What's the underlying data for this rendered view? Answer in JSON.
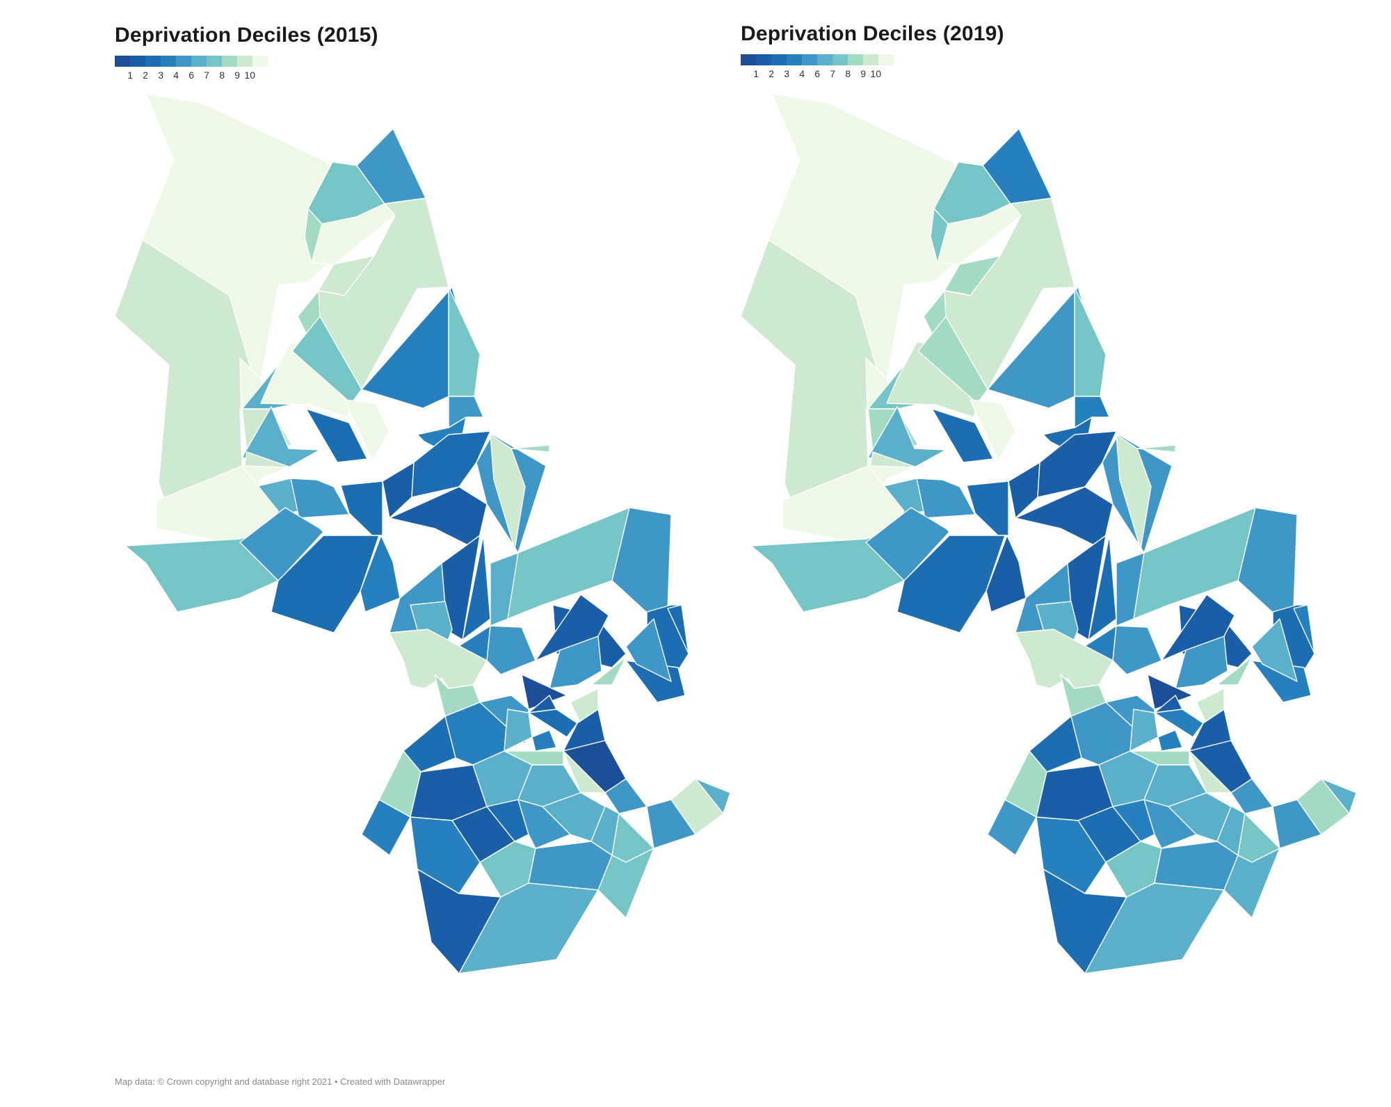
{
  "palette": [
    "#1d4e98",
    "#1b5ea8",
    "#1c6db2",
    "#2680bd",
    "#3f97c8",
    "#5aafca",
    "#76c5c6",
    "#a3dbc2",
    "#cde9cf",
    "#eef8e7"
  ],
  "maps": [
    {
      "title": "Deprivation Deciles (2015)",
      "legend_labels": [
        "1",
        "2",
        "3",
        "4",
        "6",
        "7",
        "8",
        "9",
        "10"
      ]
    },
    {
      "title": "Deprivation Deciles (2019)",
      "legend_labels": [
        "1",
        "2",
        "3",
        "4",
        "6",
        "7",
        "8",
        "9",
        "10"
      ]
    }
  ],
  "footer": "Map data: © Crown copyright and database right 2021 • Created with Datawrapper",
  "regions_2015": [
    10,
    9,
    7,
    5,
    8,
    10,
    9,
    8,
    10,
    6,
    10,
    9,
    7,
    4,
    7,
    10,
    9,
    3,
    4,
    5,
    6,
    9,
    10,
    6,
    5,
    3,
    2,
    3,
    2,
    5,
    9,
    8,
    10,
    7,
    5,
    3,
    4,
    5,
    2,
    3,
    6,
    7,
    5,
    2,
    3,
    3,
    6,
    5,
    4,
    5,
    2,
    5,
    1,
    2,
    9,
    8,
    3,
    5,
    9,
    8,
    4,
    5,
    6,
    4,
    3,
    2,
    1,
    5,
    5,
    9,
    6,
    3,
    8,
    4,
    2,
    6,
    8,
    6,
    9,
    2,
    3,
    5,
    6,
    6,
    7,
    4,
    7,
    5,
    2,
    6,
    7
  ],
  "regions_2019": [
    10,
    9,
    7,
    4,
    7,
    10,
    8,
    8,
    10,
    7,
    9,
    9,
    8,
    5,
    7,
    10,
    8,
    3,
    3,
    4,
    6,
    9,
    10,
    6,
    5,
    3,
    2,
    2,
    2,
    5,
    9,
    8,
    10,
    7,
    5,
    3,
    2,
    5,
    2,
    3,
    5,
    7,
    5,
    2,
    3,
    4,
    6,
    5,
    4,
    5,
    2,
    5,
    1,
    2,
    9,
    8,
    4,
    6,
    9,
    8,
    5,
    5,
    6,
    4,
    4,
    2,
    2,
    5,
    5,
    8,
    6,
    3,
    8,
    5,
    2,
    6,
    8,
    6,
    9,
    3,
    4,
    5,
    6,
    6,
    7,
    4,
    7,
    5,
    3,
    6,
    6
  ]
}
